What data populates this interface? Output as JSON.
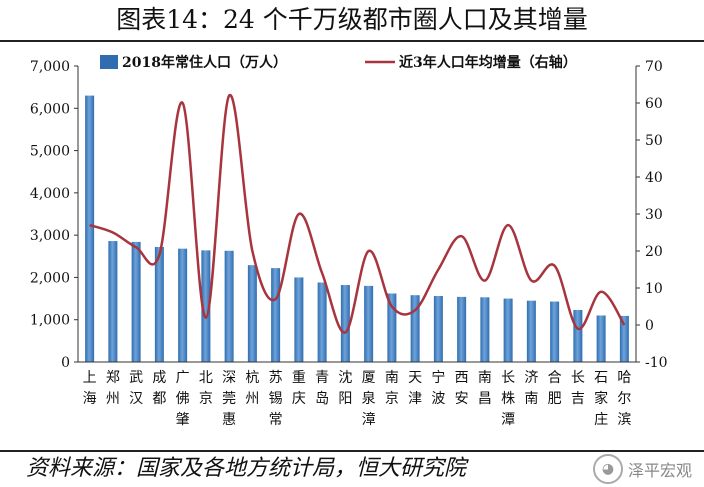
{
  "title": "图表14：24 个千万级都市圈人口及其增量",
  "source": "资料来源：国家及各地方统计局，恒大研究院",
  "watermark": {
    "text": "泽平宏观",
    "icon": "wechat-icon"
  },
  "colors": {
    "bar": "#2f6db0",
    "bar_light": "#6fa3d9",
    "line": "#a8343e",
    "axis": "#333333"
  },
  "chart_data": {
    "type": "bar",
    "categories": [
      "上海",
      "郑州",
      "武汉",
      "成都",
      "广佛肇",
      "北京",
      "深莞惠",
      "杭州",
      "苏锡常",
      "重庆",
      "青岛",
      "沈阳",
      "厦泉漳",
      "南京",
      "天津",
      "宁波",
      "西安",
      "南昌",
      "长株潭",
      "济南",
      "合肥",
      "长吉",
      "石家庄",
      "哈尔滨"
    ],
    "series": [
      {
        "name": "2018年常住人口（万人）",
        "type": "bar",
        "axis": "left",
        "values": [
          6300,
          2860,
          2840,
          2720,
          2680,
          2640,
          2630,
          2290,
          2220,
          2000,
          1880,
          1820,
          1800,
          1620,
          1580,
          1560,
          1540,
          1530,
          1500,
          1450,
          1430,
          1230,
          1100,
          1090
        ]
      },
      {
        "name": "近3年人口年均增量（右轴）",
        "type": "line",
        "axis": "right",
        "values": [
          27,
          25,
          21,
          19,
          60,
          2,
          62,
          20,
          7,
          30,
          14,
          -2,
          20,
          5,
          4,
          15,
          24,
          12,
          27,
          12,
          16,
          -1,
          9,
          0
        ]
      }
    ],
    "yaxis_left": {
      "min": 0,
      "max": 7000,
      "ticks": [
        "0",
        "1,000",
        "2,000",
        "3,000",
        "4,000",
        "5,000",
        "6,000",
        "7,000"
      ]
    },
    "yaxis_right": {
      "min": -10,
      "max": 70,
      "ticks": [
        "-10",
        "0",
        "10",
        "20",
        "30",
        "40",
        "50",
        "60",
        "70"
      ]
    },
    "legend": "top",
    "grid": false
  }
}
